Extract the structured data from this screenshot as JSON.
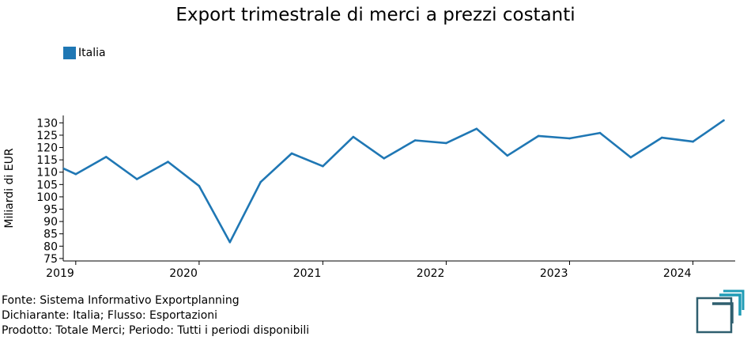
{
  "chart_data": {
    "type": "line",
    "title": "Export trimestrale di merci a prezzi costanti",
    "xlabel": "",
    "ylabel": "Miliardi di EUR",
    "ylim": [
      74,
      133
    ],
    "yticks": [
      75,
      80,
      85,
      90,
      95,
      100,
      105,
      110,
      115,
      120,
      125,
      130
    ],
    "xlim": [
      "2018-11-25",
      "2024-05-05"
    ],
    "xticks": [
      {
        "date": "2019-01-01",
        "label": "2019"
      },
      {
        "date": "2020-01-01",
        "label": "2020"
      },
      {
        "date": "2021-01-01",
        "label": "2021"
      },
      {
        "date": "2022-01-01",
        "label": "2022"
      },
      {
        "date": "2023-01-01",
        "label": "2023"
      },
      {
        "date": "2024-01-01",
        "label": "2024"
      }
    ],
    "grid": false,
    "legend_position": "top-left",
    "series": [
      {
        "name": "Italia",
        "color": "#1f77b4",
        "points": [
          {
            "x": "2018-10-01",
            "y": 115.0
          },
          {
            "x": "2019-01-01",
            "y": 109.2
          },
          {
            "x": "2019-04-01",
            "y": 116.2
          },
          {
            "x": "2019-07-01",
            "y": 107.2
          },
          {
            "x": "2019-10-01",
            "y": 114.2
          },
          {
            "x": "2020-01-01",
            "y": 104.4
          },
          {
            "x": "2020-04-01",
            "y": 81.6
          },
          {
            "x": "2020-07-01",
            "y": 106.0
          },
          {
            "x": "2020-10-01",
            "y": 117.6
          },
          {
            "x": "2021-01-01",
            "y": 112.4
          },
          {
            "x": "2021-04-01",
            "y": 124.3
          },
          {
            "x": "2021-07-01",
            "y": 115.6
          },
          {
            "x": "2021-10-01",
            "y": 122.9
          },
          {
            "x": "2022-01-01",
            "y": 121.8
          },
          {
            "x": "2022-04-01",
            "y": 127.6
          },
          {
            "x": "2022-07-01",
            "y": 116.7
          },
          {
            "x": "2022-10-01",
            "y": 124.7
          },
          {
            "x": "2023-01-01",
            "y": 123.7
          },
          {
            "x": "2023-04-01",
            "y": 125.9
          },
          {
            "x": "2023-07-01",
            "y": 116.0
          },
          {
            "x": "2023-10-01",
            "y": 124.0
          },
          {
            "x": "2024-01-01",
            "y": 122.4
          },
          {
            "x": "2024-04-01",
            "y": 131.0
          }
        ]
      }
    ]
  },
  "footer": {
    "source": "Fonte: Sistema Informativo Exportplanning",
    "declarant": "Dichiarante: Italia; Flusso: Esportazioni",
    "product": "Prodotto: Totale Merci; Periodo: Tutti i periodi disponibili"
  },
  "logo": {
    "icon": "exportplanning-logo-icon",
    "colors": {
      "dark": "#2f5f6f",
      "light": "#1f9bb5"
    }
  }
}
